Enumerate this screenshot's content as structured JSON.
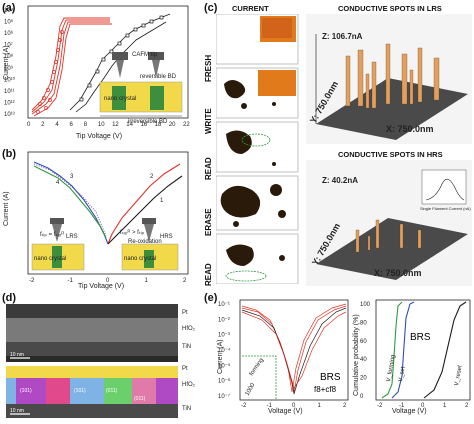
{
  "panels": {
    "a": "(a)",
    "b": "(b)",
    "c": "(c)",
    "d": "(d)",
    "e": "(e)"
  },
  "panel_a": {
    "ylabel": "Current (A)",
    "xlabel": "Tip Voltage (V)",
    "xticks": [
      "0",
      "2",
      "4",
      "6",
      "8",
      "10",
      "12",
      "14",
      "16",
      "18",
      "20",
      "22"
    ],
    "yticks": [
      "10⁴",
      "10⁵",
      "10⁶",
      "10⁷",
      "10⁸",
      "10⁹",
      "10¹⁰",
      "10¹¹",
      "10¹²",
      "10¹³"
    ],
    "annot_reversible": "reversible BD",
    "annot_irreversible": "irreversible BD",
    "annot_crystal": "nano crystal",
    "annot_tip": "CAFM tip"
  },
  "panel_b": {
    "ylabel": "Current (A)",
    "xlabel": "Tip Voltage (V)",
    "xticks": [
      "-2",
      "-1",
      "0",
      "1",
      "2"
    ],
    "curve_numbers": [
      "1",
      "2",
      "3",
      "4"
    ],
    "lrs": "LRS",
    "hrs": "HRS",
    "f_tip": "fₜᵢₚ = fₛᵤᵣᴿ",
    "f_tip2": "fₛᵤᵣᴿ > fₜᵢₚ",
    "reox": "Re-oxidation",
    "crystal_left": "nano crystal",
    "crystal_right": "nano crystal"
  },
  "panel_c": {
    "col_current": "CURRENT",
    "row_labels": [
      "FRESH",
      "WRITE",
      "READ",
      "ERASE",
      "READ"
    ],
    "lrs_title": "CONDUCTIVE SPOTS IN LRS",
    "hrs_title": "CONDUCTIVE SPOTS IN HRS",
    "lrs_z": "Z: 106.7nA",
    "lrs_y": "Y: 750.0nm",
    "lrs_x": "X: 750.0nm",
    "hrs_z": "Z: 40.2nA",
    "hrs_y": "Y: 750.0nm",
    "hrs_x": "X: 750.0nm",
    "inset_label": "Single Filament Current (nA)"
  },
  "panel_d": {
    "layer_top": "Pt",
    "layer_mid": "HfO₂",
    "layer_bot": "TiN",
    "scale1": "10 nm",
    "scale2": "10 nm",
    "grain_labels": [
      "(101)",
      "(101)",
      "(011)",
      "(011)"
    ],
    "pt_tag": "Pt",
    "hf_tag": "HfO₂",
    "tin_tag": "TiN"
  },
  "panel_e": {
    "left": {
      "ylabel": "Current (A)",
      "xlabel": "Voltage (V)",
      "xticks": [
        "-2",
        "-1",
        "0",
        "1",
        "2"
      ],
      "yticks": [
        "10⁻¹",
        "10⁻²",
        "10⁻³",
        "10⁻⁴",
        "10⁻⁵",
        "10⁻⁶",
        "10⁻⁷"
      ],
      "label_brs": "BRS",
      "label_f": "f8+cf8",
      "label_forming": "forming",
      "label_cycles": "1000"
    },
    "right": {
      "ylabel": "Cumulative probability (%)",
      "xlabel": "Voltage (V)",
      "xticks": [
        "-2",
        "-1",
        "0",
        "1",
        "2"
      ],
      "yticks": [
        "100",
        "80",
        "60",
        "40",
        "20",
        "0"
      ],
      "label_brs": "BRS",
      "v_forming": "V_forming",
      "v_set": "V_set",
      "v_reset": "V_reset"
    }
  },
  "colors": {
    "red": "#e0342a",
    "black": "#1a1a1a",
    "green": "#2e9b3f",
    "blue": "#2c4fb4",
    "purple": "#8a55b8",
    "afm_dark": "#3a2a1a",
    "afm_orange": "#e07a1a"
  }
}
